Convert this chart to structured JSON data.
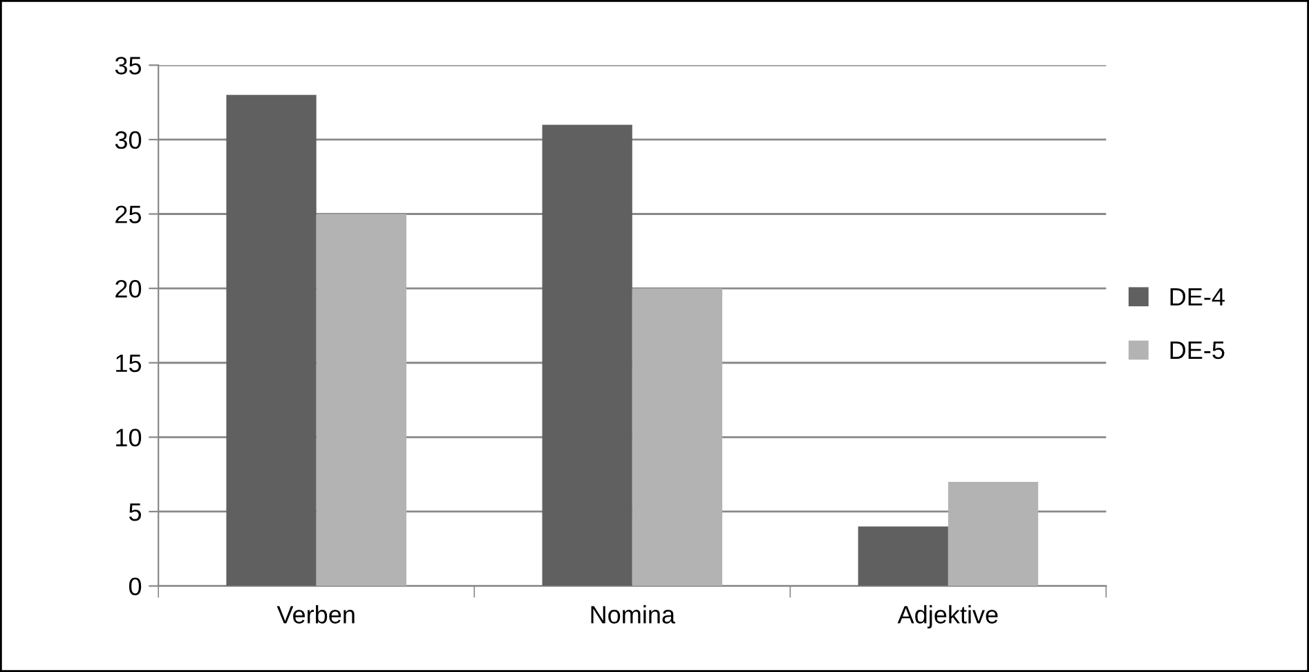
{
  "chart_data": {
    "type": "bar",
    "categories": [
      "Verben",
      "Nomina",
      "Adjektive"
    ],
    "series": [
      {
        "name": "DE-4",
        "color": "#606060",
        "values": [
          33,
          31,
          4
        ]
      },
      {
        "name": "DE-5",
        "color": "#b3b3b3",
        "values": [
          25,
          20,
          7
        ]
      }
    ],
    "ylim": [
      0,
      35
    ],
    "yticks": [
      0,
      5,
      10,
      15,
      20,
      25,
      30,
      35
    ],
    "grid": "y",
    "legend": "right"
  }
}
